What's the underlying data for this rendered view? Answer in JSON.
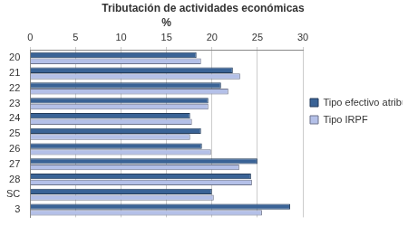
{
  "chart_data": {
    "type": "bar",
    "orientation": "horizontal",
    "title": "Tributación de actividades económicas",
    "x_label": "%",
    "categories": [
      "20",
      "21",
      "22",
      "23",
      "24",
      "25",
      "26",
      "27",
      "28",
      "SC",
      "3"
    ],
    "series": [
      {
        "name": "Tipo efectivo atribuible",
        "color": "#3a6396",
        "values": [
          18.3,
          22.3,
          21.0,
          19.6,
          17.6,
          18.8,
          18.9,
          25.0,
          24.3,
          20.0,
          28.6
        ]
      },
      {
        "name": "Tipo IRPF",
        "color": "#b4c0e8",
        "values": [
          18.8,
          23.1,
          21.8,
          19.6,
          17.8,
          17.6,
          19.9,
          23.0,
          24.4,
          20.2,
          25.5
        ]
      }
    ],
    "xlim": [
      0,
      30
    ],
    "xticks": [
      0,
      5,
      10,
      15,
      20,
      25,
      30
    ],
    "grid": true,
    "legend": "right"
  }
}
